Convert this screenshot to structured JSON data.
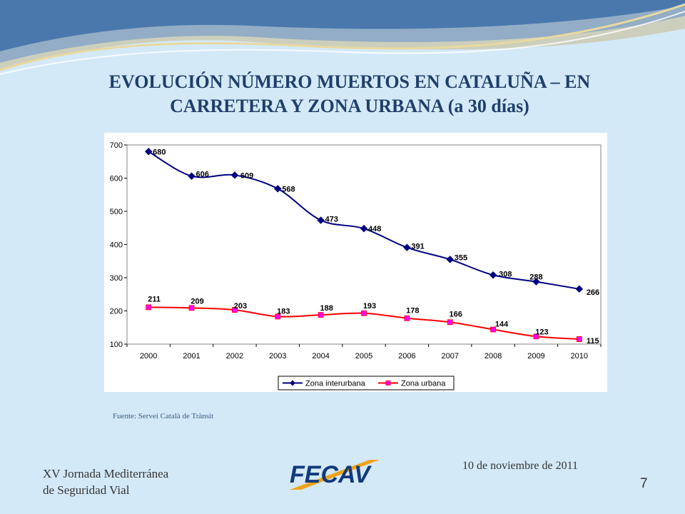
{
  "slide": {
    "title_line1": "EVOLUCIÓN NÚMERO MUERTOS EN CATALUÑA – EN",
    "title_line2": "CARRETERA Y ZONA URBANA (a 30 días)",
    "source": "Fuente: Servei Català de Trànsit",
    "footer_line1": "XV Jornada Mediterránea",
    "footer_line2": "de Seguridad Vial",
    "date": "10 de noviembre de 2011",
    "logo_text": "FECAV",
    "page_number": "7"
  },
  "colors": {
    "title": "#1f3f6b",
    "series_interurbana": "#000080",
    "series_urbana": "#ff0000",
    "marker_urbana": "#ff00ff",
    "logo_blue": "#123a7a",
    "logo_orange": "#f2a21a"
  },
  "chart_data": {
    "type": "line",
    "categories": [
      "2000",
      "2001",
      "2002",
      "2003",
      "2004",
      "2005",
      "2006",
      "2007",
      "2008",
      "2009",
      "2010"
    ],
    "series": [
      {
        "name": "Zona interurbana",
        "values": [
          680,
          606,
          609,
          568,
          473,
          448,
          391,
          355,
          308,
          288,
          266
        ],
        "marker": "diamond"
      },
      {
        "name": "Zona urbana",
        "values": [
          211,
          209,
          203,
          183,
          188,
          193,
          178,
          166,
          144,
          123,
          115
        ],
        "marker": "square"
      }
    ],
    "ylim": [
      100,
      700
    ],
    "yticks": [
      100,
      200,
      300,
      400,
      500,
      600,
      700
    ],
    "data_labels": true,
    "legend_position": "bottom",
    "grid": false
  }
}
